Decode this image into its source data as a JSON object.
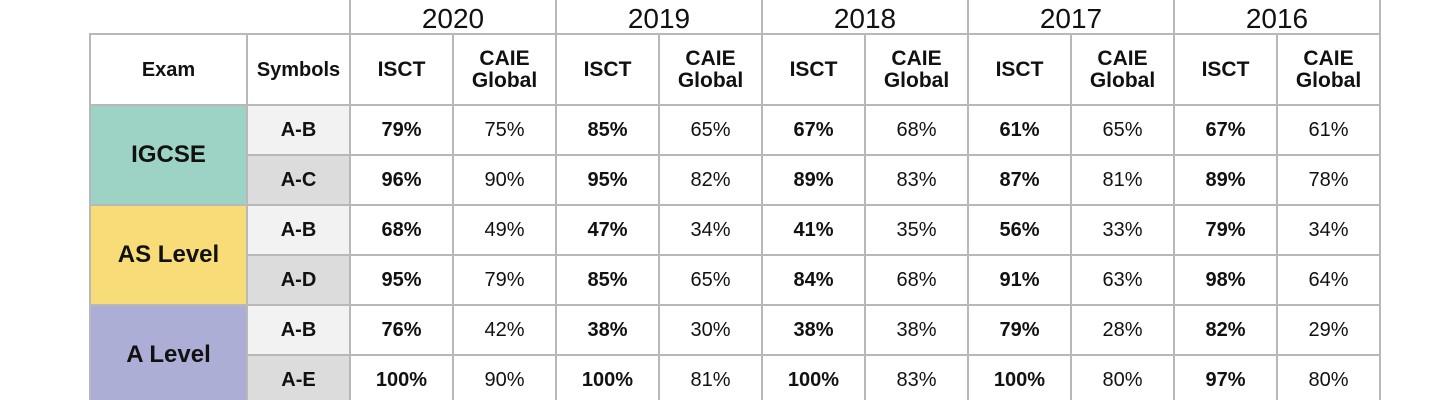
{
  "colors": {
    "igcse": "#9dd3c4",
    "as_level": "#f8dc78",
    "a_level": "#acaed6",
    "border": "#b8b8b8"
  },
  "headers": {
    "exam": "Exam",
    "symbols": "Symbols",
    "isct": "ISCT",
    "caie_line1": "CAIE",
    "caie_line2": "Global"
  },
  "years": [
    "2020",
    "2019",
    "2018",
    "2017",
    "2016"
  ],
  "exams": [
    {
      "name": "IGCSE",
      "rows": [
        {
          "symbol": "A-B",
          "values": [
            "79%",
            "75%",
            "85%",
            "65%",
            "67%",
            "68%",
            "61%",
            "65%",
            "67%",
            "61%"
          ]
        },
        {
          "symbol": "A-C",
          "values": [
            "96%",
            "90%",
            "95%",
            "82%",
            "89%",
            "83%",
            "87%",
            "81%",
            "89%",
            "78%"
          ]
        }
      ]
    },
    {
      "name": "AS Level",
      "rows": [
        {
          "symbol": "A-B",
          "values": [
            "68%",
            "49%",
            "47%",
            "34%",
            "41%",
            "35%",
            "56%",
            "33%",
            "79%",
            "34%"
          ]
        },
        {
          "symbol": "A-D",
          "values": [
            "95%",
            "79%",
            "85%",
            "65%",
            "84%",
            "68%",
            "91%",
            "63%",
            "98%",
            "64%"
          ]
        }
      ]
    },
    {
      "name": "A Level",
      "rows": [
        {
          "symbol": "A-B",
          "values": [
            "76%",
            "42%",
            "38%",
            "30%",
            "38%",
            "38%",
            "79%",
            "28%",
            "82%",
            "29%"
          ]
        },
        {
          "symbol": "A-E",
          "values": [
            "100%",
            "90%",
            "100%",
            "81%",
            "100%",
            "83%",
            "100%",
            "80%",
            "97%",
            "80%"
          ]
        }
      ]
    }
  ]
}
